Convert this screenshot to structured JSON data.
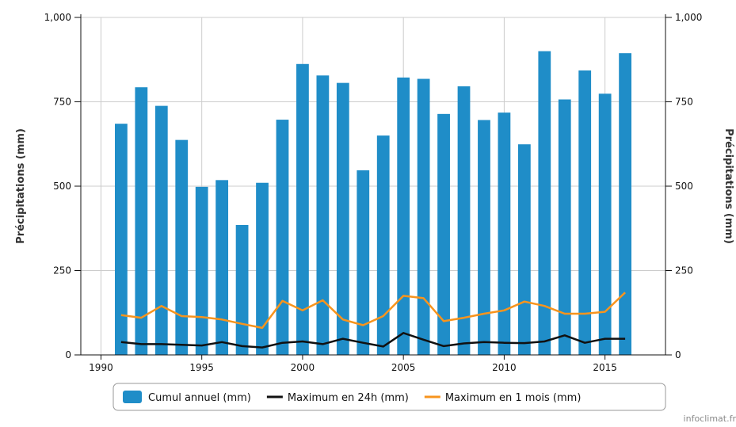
{
  "chart_data": {
    "type": "bar",
    "x": [
      1991,
      1992,
      1993,
      1994,
      1995,
      1996,
      1997,
      1998,
      1999,
      2000,
      2001,
      2002,
      2003,
      2004,
      2005,
      2006,
      2007,
      2008,
      2009,
      2010,
      2011,
      2012,
      2013,
      2014,
      2015,
      2016
    ],
    "xlim": [
      1989,
      2018
    ],
    "x_ticks": [
      "1990",
      "1995",
      "2000",
      "2005",
      "2010",
      "2015"
    ],
    "ylim": [
      0,
      1000
    ],
    "y_ticks": [
      "0",
      "250",
      "500",
      "750",
      "1,000"
    ],
    "ylabel_left": "Précipitations (mm)",
    "ylabel_right": "Précipitations (mm)",
    "grid": true,
    "legend_position": "bottom",
    "series": [
      {
        "name": "Cumul annuel (mm)",
        "type": "bar",
        "color": "#1f8dc8",
        "values": [
          685,
          793,
          738,
          637,
          498,
          518,
          385,
          510,
          697,
          862,
          828,
          806,
          547,
          650,
          822,
          818,
          714,
          796,
          696,
          718,
          624,
          900,
          757,
          843,
          774,
          894
        ]
      },
      {
        "name": "Maximum en 24h (mm)",
        "type": "line",
        "color": "#111111",
        "values": [
          38,
          32,
          32,
          30,
          28,
          38,
          26,
          22,
          36,
          40,
          32,
          48,
          36,
          25,
          65,
          45,
          26,
          34,
          38,
          36,
          35,
          40,
          58,
          36,
          48,
          48
        ]
      },
      {
        "name": "Maximum en 1 mois (mm)",
        "type": "line",
        "color": "#f7941d",
        "values": [
          118,
          110,
          145,
          115,
          112,
          105,
          92,
          80,
          160,
          132,
          162,
          105,
          88,
          115,
          175,
          168,
          100,
          110,
          122,
          132,
          158,
          145,
          122,
          122,
          128,
          185
        ]
      }
    ]
  },
  "credit": "infoclimat.fr",
  "colors": {
    "grid": "#cccccc",
    "axis": "#111111"
  }
}
